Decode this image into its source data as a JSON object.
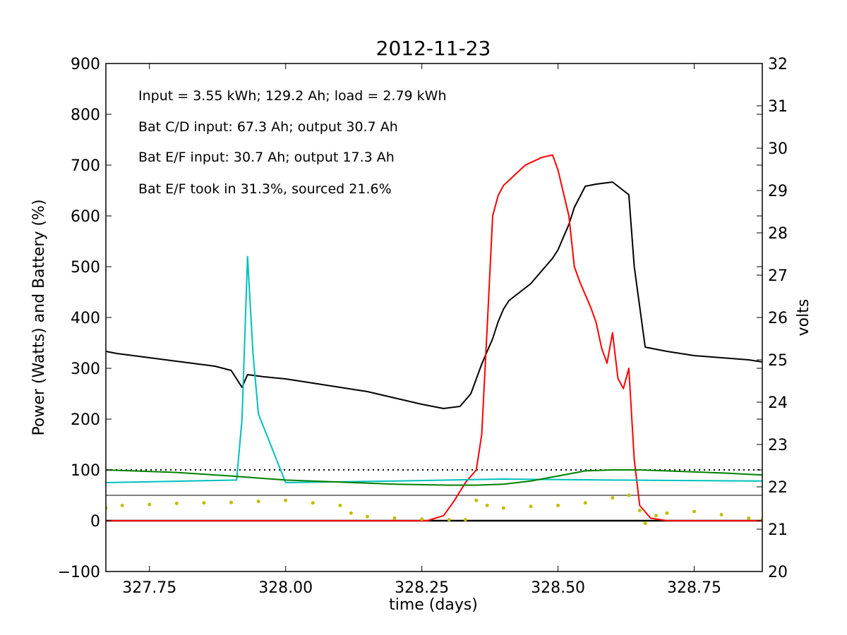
{
  "chart_data": {
    "type": "line",
    "title": "2012-11-23",
    "xlabel": "time (days)",
    "ylabel": "Power (Watts) and Battery (%)",
    "y2label": "volts",
    "xlim": [
      327.67,
      328.875
    ],
    "ylim": [
      -100,
      900
    ],
    "y2lim": [
      20,
      32
    ],
    "x_ticks": [
      "327.75",
      "328.00",
      "328.25",
      "328.50",
      "328.75"
    ],
    "y_ticks": [
      "−100",
      "0",
      "100",
      "200",
      "300",
      "400",
      "500",
      "600",
      "700",
      "800",
      "900"
    ],
    "y2_ticks": [
      "20",
      "21",
      "22",
      "23",
      "24",
      "25",
      "26",
      "27",
      "28",
      "29",
      "30",
      "31",
      "32"
    ],
    "annotations": [
      "Input = 3.55 kWh; 129.2 Ah; load = 2.79 kWh",
      "Bat C/D input: 67.3 Ah; output 30.7 Ah",
      "Bat E/F input: 30.7 Ah; output 17.3 Ah",
      "Bat E/F took in 31.3%, sourced 21.6%"
    ],
    "reference_lines": [
      {
        "axis": "y",
        "value": 100,
        "style": "dotted",
        "color": "#000000"
      },
      {
        "axis": "y",
        "value": 50,
        "style": "solid-thin",
        "color": "#000000"
      },
      {
        "axis": "y",
        "value": 0,
        "style": "solid-thick",
        "color": "#000000"
      }
    ],
    "series": [
      {
        "axis": "y2",
        "color": "#000000",
        "style": "line",
        "x": [
          327.67,
          327.69,
          327.72,
          327.75,
          327.78,
          327.81,
          327.84,
          327.87,
          327.9,
          327.92,
          327.93,
          327.96,
          328.0,
          328.05,
          328.1,
          328.15,
          328.2,
          328.25,
          328.29,
          328.32,
          328.34,
          328.36,
          328.37,
          328.38,
          328.39,
          328.4,
          328.41,
          328.43,
          328.45,
          328.47,
          328.49,
          328.5,
          328.51,
          328.52,
          328.53,
          328.55,
          328.57,
          328.6,
          328.62,
          328.63,
          328.64,
          328.66,
          328.7,
          328.75,
          328.8,
          328.85,
          328.875
        ],
        "y": [
          25.2,
          25.15,
          25.1,
          25.05,
          25.0,
          24.95,
          24.9,
          24.85,
          24.75,
          24.35,
          24.65,
          24.6,
          24.55,
          24.45,
          24.35,
          24.25,
          24.1,
          23.95,
          23.85,
          23.9,
          24.2,
          24.9,
          25.2,
          25.5,
          25.9,
          26.2,
          26.4,
          26.6,
          26.8,
          27.1,
          27.4,
          27.6,
          27.9,
          28.2,
          28.6,
          29.1,
          29.15,
          29.2,
          29.0,
          28.9,
          27.2,
          25.3,
          25.2,
          25.1,
          25.05,
          25.0,
          24.95
        ]
      },
      {
        "axis": "y",
        "color": "#ff0000",
        "style": "line",
        "x": [
          327.67,
          327.9,
          328.1,
          328.26,
          328.29,
          328.31,
          328.33,
          328.35,
          328.36,
          328.37,
          328.38,
          328.39,
          328.4,
          328.42,
          328.44,
          328.46,
          328.47,
          328.49,
          328.5,
          328.52,
          328.53,
          328.54,
          328.56,
          328.57,
          328.58,
          328.59,
          328.6,
          328.61,
          328.62,
          328.63,
          328.64,
          328.65,
          328.67,
          328.7,
          328.875
        ],
        "y": [
          0,
          0,
          0,
          0,
          10,
          40,
          75,
          100,
          170,
          380,
          600,
          640,
          660,
          680,
          700,
          710,
          715,
          720,
          690,
          600,
          500,
          470,
          420,
          390,
          340,
          310,
          370,
          280,
          260,
          300,
          120,
          30,
          5,
          0,
          0
        ]
      },
      {
        "axis": "y",
        "color": "#00bfbf",
        "style": "line",
        "x": [
          327.67,
          327.91,
          327.92,
          327.93,
          327.94,
          327.95,
          328.0,
          328.2,
          328.4,
          328.6,
          328.875
        ],
        "y": [
          75,
          80,
          200,
          520,
          330,
          210,
          75,
          78,
          82,
          80,
          78
        ]
      },
      {
        "axis": "y",
        "color": "#008000",
        "style": "line",
        "x": [
          327.67,
          327.8,
          327.9,
          328.0,
          328.1,
          328.2,
          328.3,
          328.35,
          328.4,
          328.45,
          328.5,
          328.55,
          328.6,
          328.65,
          328.7,
          328.8,
          328.875
        ],
        "y": [
          100,
          95,
          88,
          80,
          76,
          72,
          70,
          70,
          72,
          78,
          88,
          98,
          100,
          100,
          98,
          94,
          90
        ]
      },
      {
        "axis": "y",
        "color": "#bfbf00",
        "style": "dots",
        "x": [
          327.67,
          327.7,
          327.75,
          327.8,
          327.85,
          327.9,
          327.95,
          328.0,
          328.05,
          328.1,
          328.12,
          328.15,
          328.2,
          328.25,
          328.3,
          328.33,
          328.35,
          328.37,
          328.4,
          328.45,
          328.5,
          328.55,
          328.6,
          328.63,
          328.65,
          328.66,
          328.68,
          328.7,
          328.75,
          328.8,
          328.85,
          328.875
        ],
        "y": [
          25,
          30,
          32,
          34,
          35,
          36,
          38,
          40,
          35,
          30,
          15,
          8,
          5,
          3,
          2,
          2,
          40,
          30,
          25,
          28,
          30,
          35,
          45,
          50,
          20,
          -5,
          10,
          15,
          18,
          12,
          5,
          2
        ]
      }
    ]
  }
}
